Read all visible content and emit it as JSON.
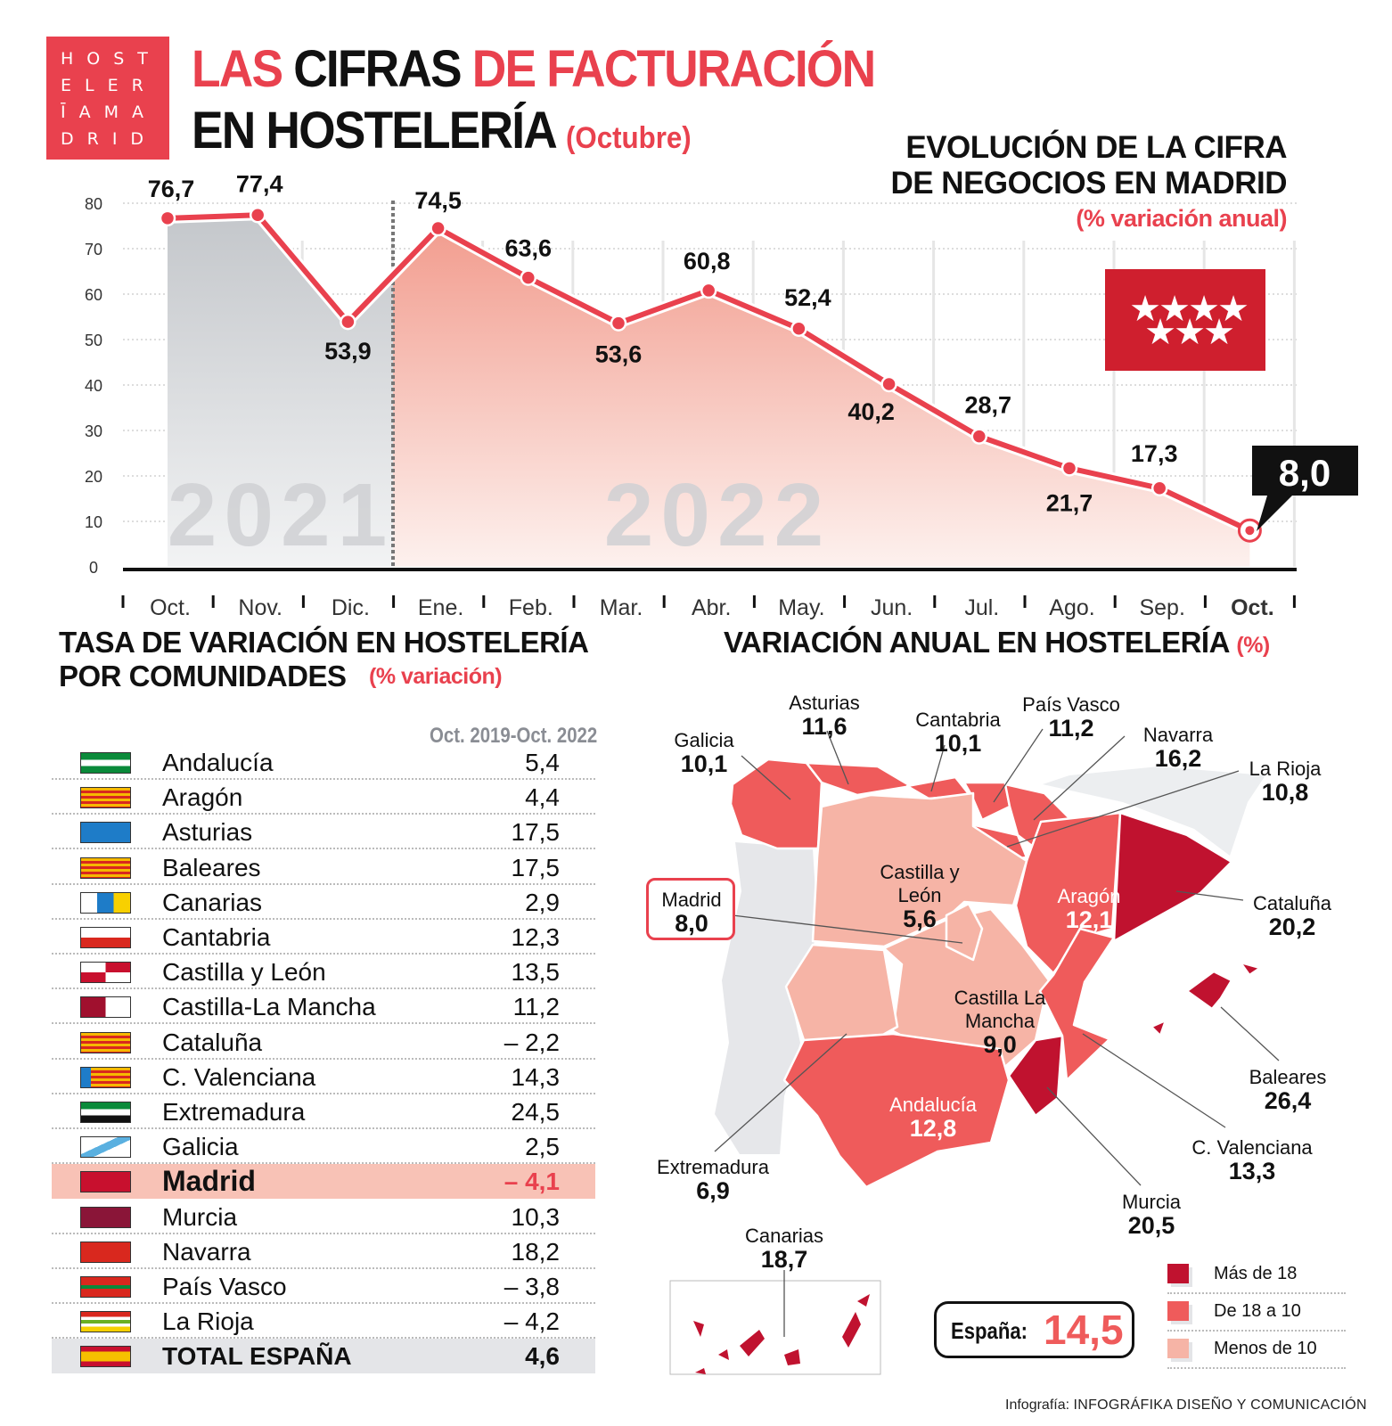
{
  "logo": {
    "lines": [
      "HOST",
      "ELER",
      "ĪAMA",
      "DRID"
    ]
  },
  "title": {
    "part1_red": "LAS",
    "part1_black": "CIFRAS",
    "part1_red2": "DE FACTURACIÓN",
    "line2": "EN HOSTELERÍA",
    "period": "(Octubre)"
  },
  "chart_data": [
    {
      "type": "area",
      "title": "EVOLUCIÓN DE LA CIFRA DE NEGOCIOS EN MADRID",
      "subtitle": "(% variación anual)",
      "categories": [
        "Oct.",
        "Nov.",
        "Dic.",
        "Ene.",
        "Feb.",
        "Mar.",
        "Abr.",
        "May.",
        "Jun.",
        "Jul.",
        "Ago.",
        "Sep.",
        "Oct."
      ],
      "values": [
        76.7,
        77.4,
        53.9,
        74.5,
        63.6,
        53.6,
        60.8,
        52.4,
        40.2,
        28.7,
        21.7,
        17.3,
        8.0
      ],
      "value_labels": [
        "76,7",
        "77,4",
        "53,9",
        "74,5",
        "63,6",
        "53,6",
        "60,8",
        "52,4",
        "40,2",
        "28,7",
        "21,7",
        "17,3",
        "8,0"
      ],
      "year_labels": [
        "2021",
        "2022"
      ],
      "yticks": [
        "0",
        "10",
        "20",
        "30",
        "40",
        "50",
        "60",
        "70",
        "80"
      ],
      "ylim": [
        0,
        80
      ],
      "grid": true,
      "colors": {
        "line": "#e9414e",
        "area_2021": "#c4c7cb",
        "area_2022": "#f29d8f"
      }
    },
    {
      "type": "table",
      "title": "TASA DE VARIACIÓN EN HOSTELERÍA POR COMUNIDADES",
      "subtitle": "(% variación)",
      "column": "Oct. 2019-Oct. 2022",
      "rows": [
        [
          "Andalucía",
          "5,4"
        ],
        [
          "Aragón",
          "4,4"
        ],
        [
          "Asturias",
          "17,5"
        ],
        [
          "Baleares",
          "17,5"
        ],
        [
          "Canarias",
          "2,9"
        ],
        [
          "Cantabria",
          "12,3"
        ],
        [
          "Castilla y León",
          "13,5"
        ],
        [
          "Castilla-La Mancha",
          "11,2"
        ],
        [
          "Cataluña",
          "– 2,2"
        ],
        [
          "C. Valenciana",
          "14,3"
        ],
        [
          "Extremadura",
          "24,5"
        ],
        [
          "Galicia",
          "2,5"
        ],
        [
          "Madrid",
          "– 4,1"
        ],
        [
          "Murcia",
          "10,3"
        ],
        [
          "Navarra",
          "18,2"
        ],
        [
          "País Vasco",
          "– 3,8"
        ],
        [
          "La Rioja",
          "– 4,2"
        ],
        [
          "TOTAL ESPAÑA",
          "4,6"
        ]
      ]
    }
  ],
  "map": {
    "title": "VARIACIÓN ANUAL EN HOSTELERÍA",
    "unit": "(%)",
    "regions": {
      "galicia": [
        "Galicia",
        "10,1"
      ],
      "asturias": [
        "Asturias",
        "11,6"
      ],
      "cantabria": [
        "Cantabria",
        "10,1"
      ],
      "pvasco": [
        "País Vasco",
        "11,2"
      ],
      "navarra": [
        "Navarra",
        "16,2"
      ],
      "rioja": [
        "La Rioja",
        "10,8"
      ],
      "cyl": [
        "Castilla y León",
        "5,6"
      ],
      "aragon": [
        "Aragón",
        "12,1"
      ],
      "cataluna": [
        "Cataluña",
        "20,2"
      ],
      "madrid": [
        "Madrid",
        "8,0"
      ],
      "clm": [
        "Castilla La Mancha",
        "9,0"
      ],
      "baleares": [
        "Baleares",
        "26,4"
      ],
      "extremadura": [
        "Extremadura",
        "6,9"
      ],
      "andalucia": [
        "Andalucía",
        "12,8"
      ],
      "valenciana": [
        "C. Valenciana",
        "13,3"
      ],
      "murcia": [
        "Murcia",
        "20,5"
      ],
      "canarias": [
        "Canarias",
        "18,7"
      ]
    },
    "espana_label": "España:",
    "espana_value": "14,5",
    "legend": [
      {
        "label": "Más de 18",
        "color": "#c0122f"
      },
      {
        "label": "De 18 a 10",
        "color": "#ef5b5b"
      },
      {
        "label": "Menos de 10",
        "color": "#f6b4a6"
      }
    ]
  },
  "credit": {
    "prefix": "Infografía:",
    "author": "INFOGRÁFIKA DISEÑO Y COMUNICACIÓN"
  }
}
